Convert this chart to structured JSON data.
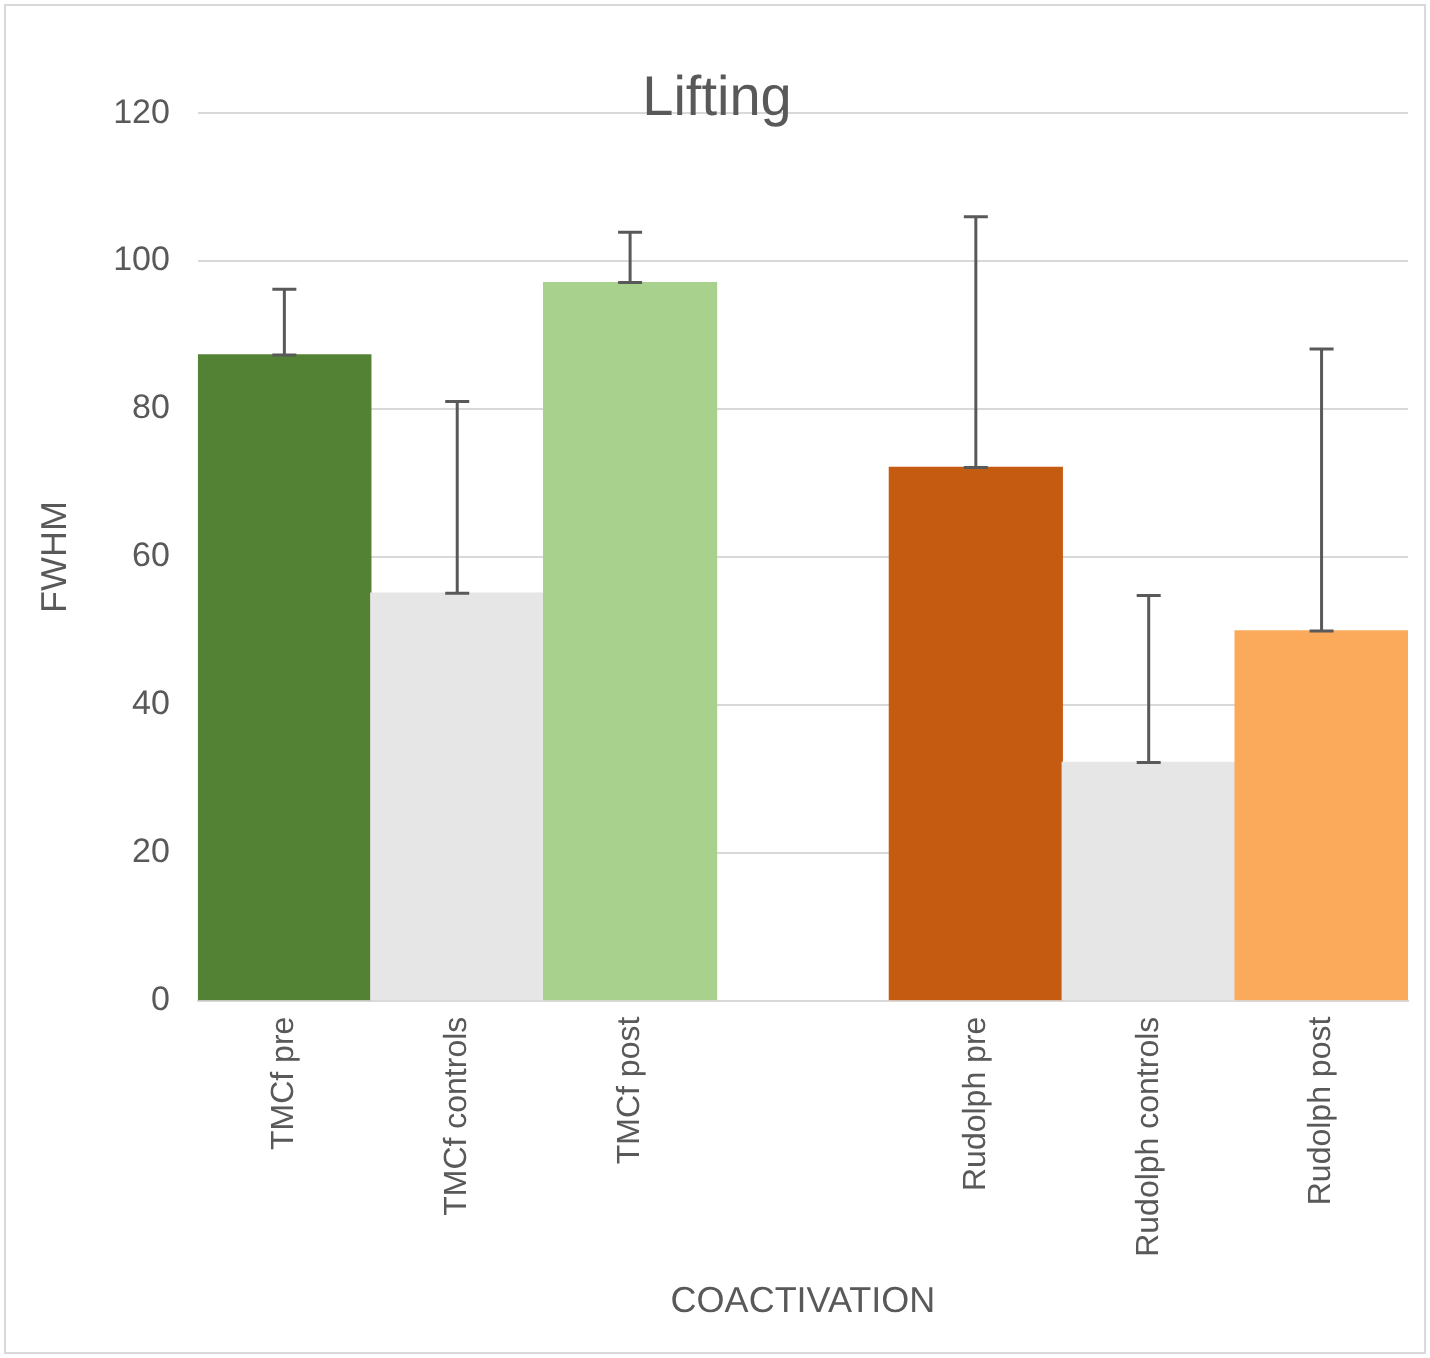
{
  "chart_data": {
    "type": "bar",
    "title": "Lifting",
    "xlabel": "COACTIVATION",
    "ylabel": "FWHM",
    "categories": [
      "TMCf pre",
      "TMCf controls",
      "TMCf post",
      null,
      "Rudolph pre",
      "Rudolph controls",
      "Rudolph post"
    ],
    "values": [
      87.3,
      55.1,
      97.1,
      null,
      72.1,
      32.2,
      50
    ],
    "colors": [
      "#548235",
      "#e7e6e6",
      "#a9d18e",
      "#ffffff",
      "#c55a11",
      "#e7e6e6",
      "#fbaa5b"
    ],
    "errors": [
      [
        87.3,
        96.2
      ],
      [
        55.1,
        81
      ],
      [
        97.1,
        103.9
      ],
      null,
      [
        72.1,
        106
      ],
      [
        32.2,
        54.8
      ],
      [
        50,
        88.1
      ]
    ],
    "ylim": [
      0,
      120
    ],
    "yticks": [
      0,
      20,
      40,
      60,
      80,
      100,
      120
    ],
    "grid": "y",
    "legend": false
  }
}
